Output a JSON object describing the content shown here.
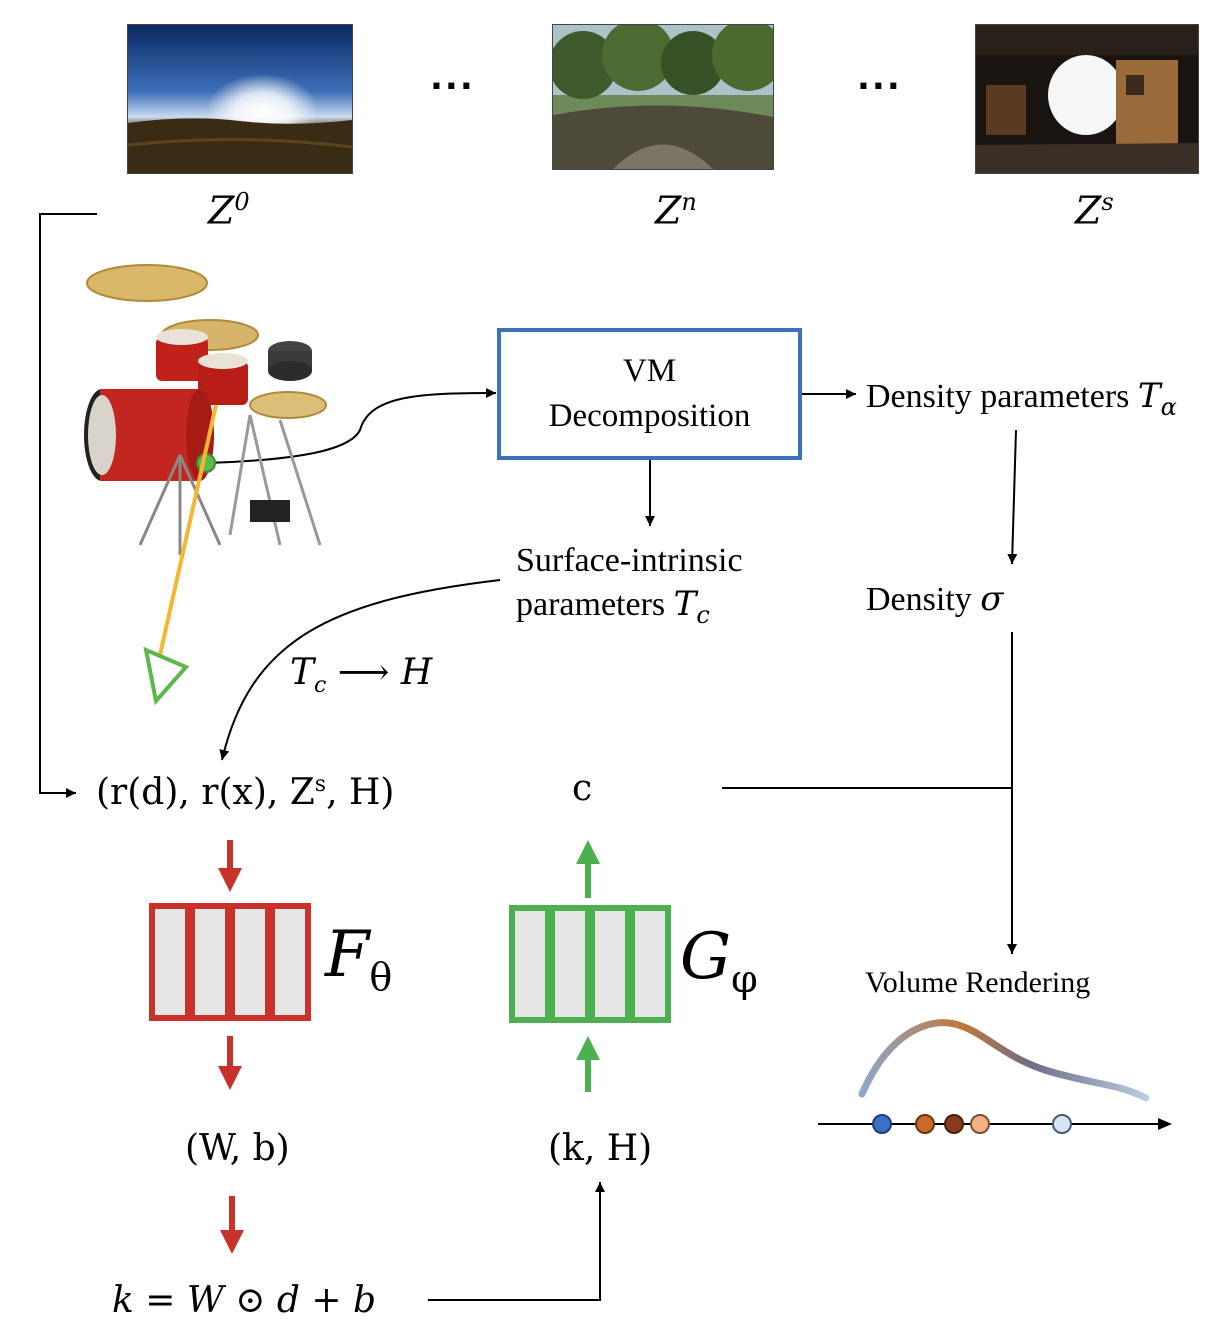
{
  "env_maps": [
    {
      "label": "Z",
      "sup": "0",
      "name": "sunset-field"
    },
    {
      "label": "Z",
      "sup": "n",
      "name": "forest-trail"
    },
    {
      "label": "Z",
      "sup": "s",
      "name": "indoor-garage"
    }
  ],
  "ellipsis": "...",
  "vm_box": {
    "line1": "VM",
    "line2": "Decomposition"
  },
  "density_params": {
    "text": "Density parameters ",
    "symbol": "T",
    "sub": "α"
  },
  "density": {
    "text": "Density ",
    "symbol": "σ"
  },
  "surface_params": {
    "line1": "Surface-intrinsic",
    "line2": "parameters ",
    "symbol": "T",
    "sub": "c"
  },
  "tc_to_h": {
    "symbol": "T",
    "sub": "c",
    "arrow": " ⟶ ",
    "target": "H"
  },
  "input_tuple": {
    "text": "(r(d), r(x), Z",
    "sup": "s",
    "tail": ", H)"
  },
  "c_label": "c",
  "f_net": {
    "symbol": "F",
    "sub": "θ",
    "color": "#c8322a"
  },
  "g_net": {
    "symbol": "G",
    "sub": "φ",
    "color": "#4caf50"
  },
  "wb_tuple": "(W, b)",
  "kh_tuple": "(k, H)",
  "k_formula": "k = W ⊙ d + b",
  "volume_rendering": "Volume Rendering",
  "colors": {
    "vm_border": "#3a73b9",
    "red": "#c8322a",
    "green": "#4caf50",
    "ray": "#f5b731"
  }
}
